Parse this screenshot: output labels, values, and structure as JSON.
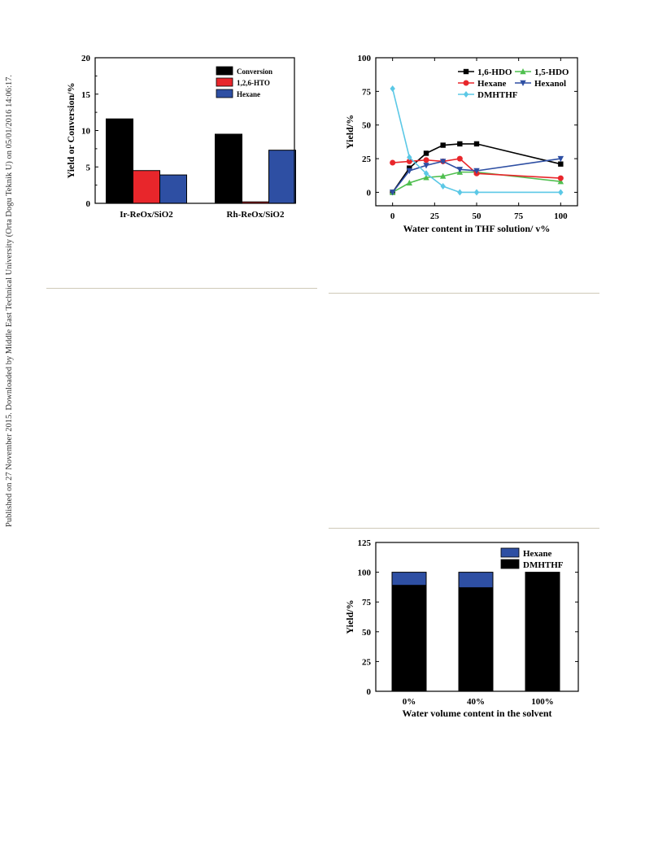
{
  "side_note": "Published on 27 November 2015. Downloaded by Middle East Technical University (Orta Dogu Teknik U) on 05/01/2016 14:06:17.",
  "colors": {
    "rule": "#cfc9b8"
  },
  "chart_data": [
    {
      "type": "bar",
      "title": "",
      "xlabel": "",
      "ylabel": "Yield or Conversion/%",
      "ylim": [
        0,
        20
      ],
      "yticks": [
        "0",
        "5",
        "10",
        "15",
        "20"
      ],
      "categories": [
        "Ir-ReOx/SiO2",
        "Rh-ReOx/SiO2"
      ],
      "series": [
        {
          "name": "Conversion",
          "color": "#000000",
          "values": [
            11.6,
            9.5
          ]
        },
        {
          "name": "1,2,6-HTO",
          "color": "#e8262b",
          "values": [
            4.5,
            0.2
          ]
        },
        {
          "name": "Hexane",
          "color": "#2e4fa3",
          "values": [
            3.9,
            7.3
          ]
        }
      ],
      "legend_position": "top-right"
    },
    {
      "type": "line",
      "title": "",
      "xlabel": "Water content in THF solution/ v%",
      "ylabel": "Yield/%",
      "xlim": [
        -10,
        110
      ],
      "ylim": [
        -10,
        100
      ],
      "xticks": [
        "0",
        "25",
        "50",
        "75",
        "100"
      ],
      "yticks": [
        "0",
        "25",
        "50",
        "75",
        "100"
      ],
      "series": [
        {
          "name": "1,6-HDO",
          "color": "#000000",
          "marker": "square",
          "x": [
            0,
            10,
            20,
            30,
            40,
            50,
            100
          ],
          "y": [
            0,
            18,
            29,
            35,
            36,
            36,
            21
          ]
        },
        {
          "name": "1,5-HDO",
          "color": "#4fbf4f",
          "marker": "triangle-up",
          "x": [
            0,
            10,
            20,
            30,
            40,
            50,
            100
          ],
          "y": [
            0,
            7,
            11,
            12,
            15,
            15,
            8
          ]
        },
        {
          "name": "Hexane",
          "color": "#e8262b",
          "marker": "circle",
          "x": [
            0,
            10,
            20,
            30,
            40,
            50,
            100
          ],
          "y": [
            22,
            23,
            24,
            23,
            25,
            14,
            10.5
          ]
        },
        {
          "name": "Hexanol",
          "color": "#2e4fa3",
          "marker": "triangle-down",
          "x": [
            0,
            10,
            20,
            30,
            40,
            50,
            100
          ],
          "y": [
            0,
            16,
            20,
            23,
            17,
            16,
            25
          ]
        },
        {
          "name": "DMHTHF",
          "color": "#5bc8e6",
          "marker": "diamond",
          "x": [
            0,
            10,
            20,
            30,
            40,
            50,
            100
          ],
          "y": [
            77,
            26,
            14,
            4.5,
            0,
            0,
            0
          ]
        }
      ],
      "legend_position": "top-right"
    },
    {
      "type": "bar",
      "stacked": true,
      "title": "",
      "xlabel": "Water volume content in the solvent",
      "ylabel": "Yield/%",
      "ylim": [
        0,
        125
      ],
      "yticks": [
        "0",
        "25",
        "50",
        "75",
        "100",
        "125"
      ],
      "categories": [
        "0%",
        "40%",
        "100%"
      ],
      "series": [
        {
          "name": "DMHTHF",
          "color": "#000000",
          "values": [
            89,
            87,
            100
          ]
        },
        {
          "name": "Hexane",
          "color": "#2e4fa3",
          "values": [
            11,
            13,
            0
          ]
        }
      ],
      "legend_order": [
        "Hexane",
        "DMHTHF"
      ],
      "legend_position": "top-right"
    }
  ]
}
